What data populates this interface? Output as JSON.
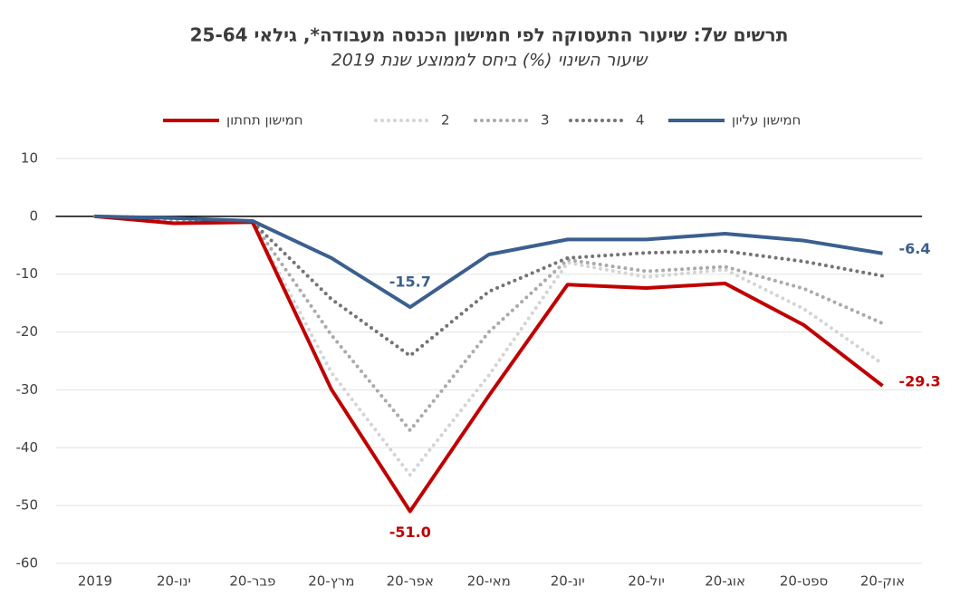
{
  "chart_data": {
    "type": "line",
    "title": "תרשים ש7: שיעור התעסוקה לפי חמישון הכנסה מעבודה*, גילאי 25-64",
    "subtitle": "שיעור השינוי (%) ביחס לממוצע שנת 2019",
    "categories": [
      "2019",
      "ינו-20",
      "פבר-20",
      "מרץ-20",
      "אפר-20",
      "מאי-20",
      "יונ-20",
      "יול-20",
      "אוג-20",
      "ספט-20",
      "אוק-20"
    ],
    "series": [
      {
        "name": "חמישון תחתון",
        "color": "#c00000",
        "style": "solid",
        "values": [
          0,
          -1.2,
          -1,
          -29.9,
          -51,
          -31,
          -11.8,
          -12.4,
          -11.6,
          -18.8,
          -29.3
        ],
        "value_labels": [
          null,
          null,
          null,
          null,
          "-51.0",
          null,
          null,
          null,
          null,
          null,
          "-29.3"
        ]
      },
      {
        "name": "2",
        "color": "#d4d4d4",
        "style": "dotted",
        "values": [
          0,
          -0.8,
          -1,
          -27,
          -44.7,
          -27.5,
          -8,
          -10.5,
          -9.2,
          -16,
          -25.5
        ]
      },
      {
        "name": "3",
        "color": "#aaaaaa",
        "style": "dotted",
        "values": [
          0,
          -0.5,
          -1,
          -20.5,
          -37,
          -20,
          -7.5,
          -9.5,
          -8.7,
          -12.5,
          -18.5
        ]
      },
      {
        "name": "4",
        "color": "#747474",
        "style": "dotted",
        "values": [
          0,
          -0.3,
          -1,
          -14.3,
          -24.1,
          -13,
          -7.2,
          -6.3,
          -6,
          -7.8,
          -10.3
        ]
      },
      {
        "name": "חמישון עליון",
        "color": "#3b5f8e",
        "style": "solid",
        "values": [
          0,
          -0.3,
          -0.8,
          -7.2,
          -15.7,
          -6.6,
          -4,
          -4,
          -3,
          -4.2,
          -6.4
        ],
        "value_labels": [
          null,
          null,
          null,
          null,
          "-15.7",
          null,
          null,
          null,
          null,
          null,
          "-6.4"
        ]
      }
    ],
    "ylim": [
      -60,
      10
    ],
    "yticks": [
      -60,
      -50,
      -40,
      -30,
      -20,
      -10,
      0,
      10
    ],
    "grid": true
  }
}
